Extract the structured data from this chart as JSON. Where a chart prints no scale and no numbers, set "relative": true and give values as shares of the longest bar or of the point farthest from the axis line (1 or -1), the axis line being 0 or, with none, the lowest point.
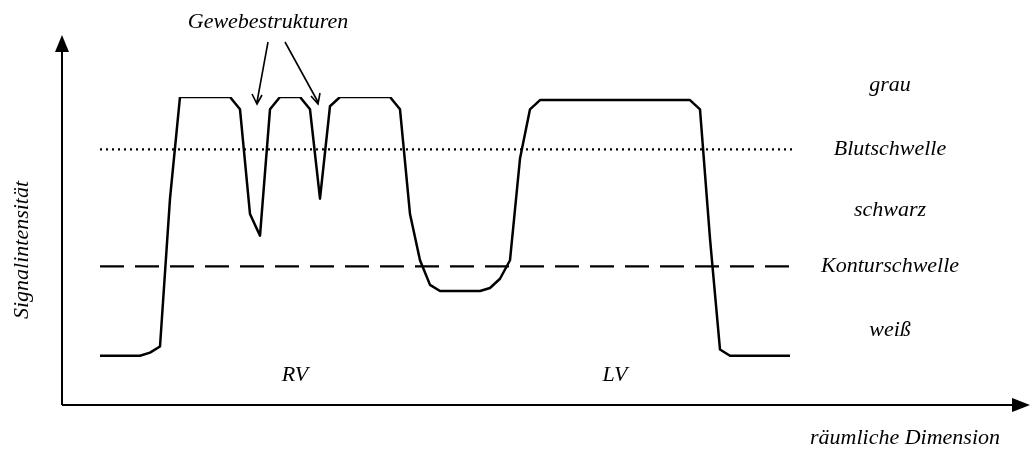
{
  "chart_data": {
    "type": "line",
    "relative": true,
    "xlabel": "räumliche Dimension",
    "ylabel": "Signalintensität",
    "categories": [
      null,
      null,
      null,
      null,
      null,
      null,
      null,
      null,
      null,
      null,
      null,
      null,
      null,
      null,
      null,
      null,
      null,
      null,
      null,
      null,
      null,
      null,
      null,
      null,
      null,
      null,
      null,
      null,
      null,
      null,
      null,
      null,
      null,
      null,
      null,
      null,
      null,
      null,
      null,
      null,
      null,
      null,
      null,
      null,
      null,
      null,
      null,
      null,
      null,
      null,
      null,
      null,
      null,
      null,
      null,
      null,
      null,
      null,
      null,
      null,
      null,
      null,
      null,
      null,
      null,
      null,
      null,
      null,
      null,
      null
    ],
    "series": [
      {
        "color": "#000000",
        "values": [
          0.16,
          0.16,
          0.16,
          0.16,
          0.16,
          0.17,
          0.19,
          0.67,
          1.0,
          1.0,
          1.0,
          1.0,
          1.0,
          1.0,
          0.96,
          0.62,
          0.55,
          0.96,
          1.0,
          1.0,
          1.0,
          0.96,
          0.67,
          0.97,
          1.0,
          1.0,
          1.0,
          1.0,
          1.0,
          1.0,
          0.96,
          0.62,
          0.47,
          0.39,
          0.37,
          0.37,
          0.37,
          0.37,
          0.37,
          0.38,
          0.41,
          0.47,
          0.8,
          0.96,
          0.99,
          0.99,
          0.99,
          0.99,
          0.99,
          0.99,
          0.99,
          0.99,
          0.99,
          0.99,
          0.99,
          0.99,
          0.99,
          0.99,
          0.99,
          0.99,
          0.96,
          0.54,
          0.18,
          0.16,
          0.16,
          0.16,
          0.16,
          0.16,
          0.16,
          0.16
        ]
      }
    ],
    "ref_lines": [
      {
        "axis": "y",
        "value": 0.83,
        "label": "Blutschwelle",
        "line_style": "dotted"
      },
      {
        "axis": "y",
        "value": 0.45,
        "label": "Konturschwelle",
        "line_style": "dashed"
      }
    ],
    "annotations": [
      "Gewebestrukturen",
      "RV",
      "LV",
      "grau",
      "schwarz",
      "weiß"
    ],
    "legend": false,
    "marker": "none"
  }
}
